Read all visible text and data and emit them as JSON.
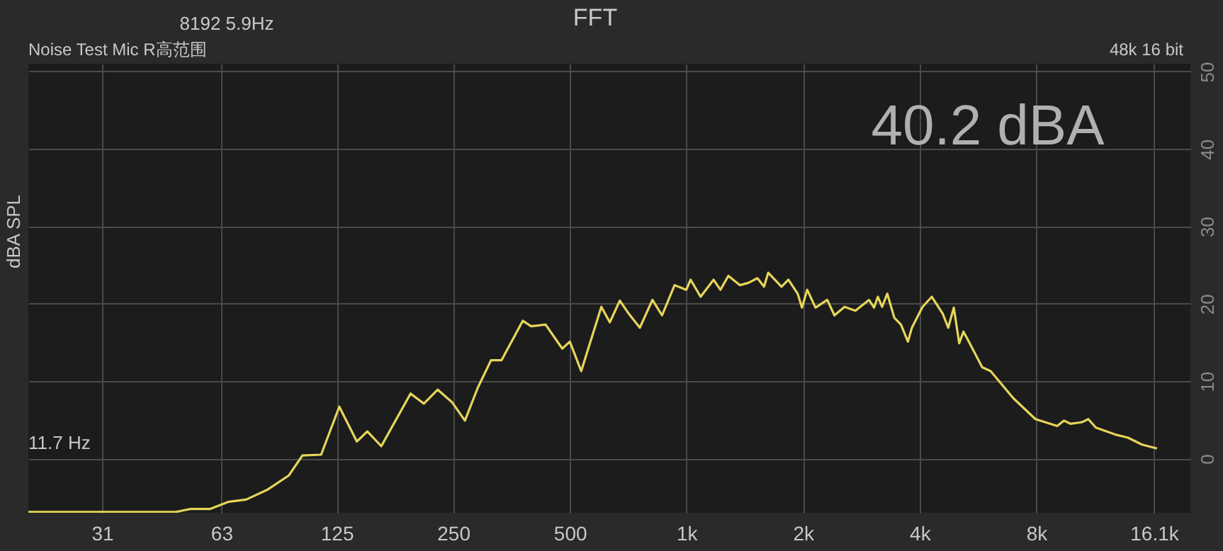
{
  "chart_data": {
    "type": "line",
    "title": "FFT",
    "ylabel": "dBA SPL",
    "annotations": [
      "8192  5.9Hz",
      "Noise Test Mic R高范围",
      "48k 16 bit",
      "40.2 dBA",
      "11.7 Hz"
    ],
    "log": "x",
    "grid": true,
    "marker": "none",
    "line_style": "solid",
    "xlim": [
      20,
      20000
    ],
    "xticks": [
      31,
      63,
      125,
      250,
      500,
      {
        "value": 1000,
        "label": "1k"
      },
      {
        "value": 2000,
        "label": "2k"
      },
      {
        "value": 4000,
        "label": "4k"
      },
      {
        "value": 8000,
        "label": "8k"
      },
      {
        "value": 16100,
        "label": "16.1k"
      }
    ],
    "ylim": [
      -7,
      51
    ],
    "yticks": [
      0,
      10,
      20,
      30,
      40,
      50
    ],
    "series": [
      {
        "color": "#e6d55a",
        "x": [
          20,
          48,
          52.6,
          59,
          65.6,
          73,
          83,
          94,
          102,
          114,
          127,
          141,
          150,
          163,
          194,
          210,
          228,
          248,
          268,
          289,
          313,
          333,
          378,
          397,
          433,
          478,
          500,
          535,
          603,
          634,
          673,
          710,
          758,
          817,
          865,
          932,
          999,
          1025,
          1088,
          1175,
          1224,
          1283,
          1375,
          1445,
          1525,
          1586,
          1626,
          1760,
          1833,
          1937,
          1987,
          2050,
          2154,
          2310,
          2410,
          2560,
          2730,
          2960,
          3050,
          3120,
          3200,
          3300,
          3440,
          3580,
          3730,
          3820,
          4070,
          4300,
          4590,
          4740,
          4900,
          5060,
          5190,
          5360,
          5800,
          6100,
          6980,
          7960,
          9060,
          9430,
          9800,
          10500,
          10900,
          11400,
          12800,
          13800,
          15000,
          16400
        ],
        "values": [
          -6.9,
          -6.9,
          -6.5,
          -6.5,
          -5.6,
          -5.3,
          -4,
          -2.2,
          0.4,
          0.5,
          6.7,
          2.2,
          3.5,
          1.6,
          8.4,
          7.1,
          8.9,
          7.3,
          4.9,
          9.1,
          12.7,
          12.7,
          17.8,
          17.1,
          17.3,
          14.2,
          15.1,
          11.3,
          19.6,
          17.6,
          20.4,
          18.7,
          16.9,
          20.5,
          18.5,
          22.4,
          21.8,
          23.1,
          20.9,
          23.1,
          21.8,
          23.6,
          22.4,
          22.7,
          23.3,
          22.2,
          24.0,
          22.2,
          23.1,
          21.3,
          19.5,
          21.8,
          19.5,
          20.5,
          18.5,
          19.6,
          19.1,
          20.5,
          19.5,
          20.9,
          19.6,
          21.3,
          18.2,
          17.3,
          15.1,
          16.9,
          19.6,
          20.9,
          18.7,
          16.9,
          19.5,
          14.9,
          16.4,
          15.1,
          11.8,
          11.3,
          7.8,
          5.1,
          4.2,
          4.9,
          4.5,
          4.7,
          5.1,
          4.0,
          3.1,
          2.7,
          1.8,
          1.3
        ]
      }
    ]
  }
}
